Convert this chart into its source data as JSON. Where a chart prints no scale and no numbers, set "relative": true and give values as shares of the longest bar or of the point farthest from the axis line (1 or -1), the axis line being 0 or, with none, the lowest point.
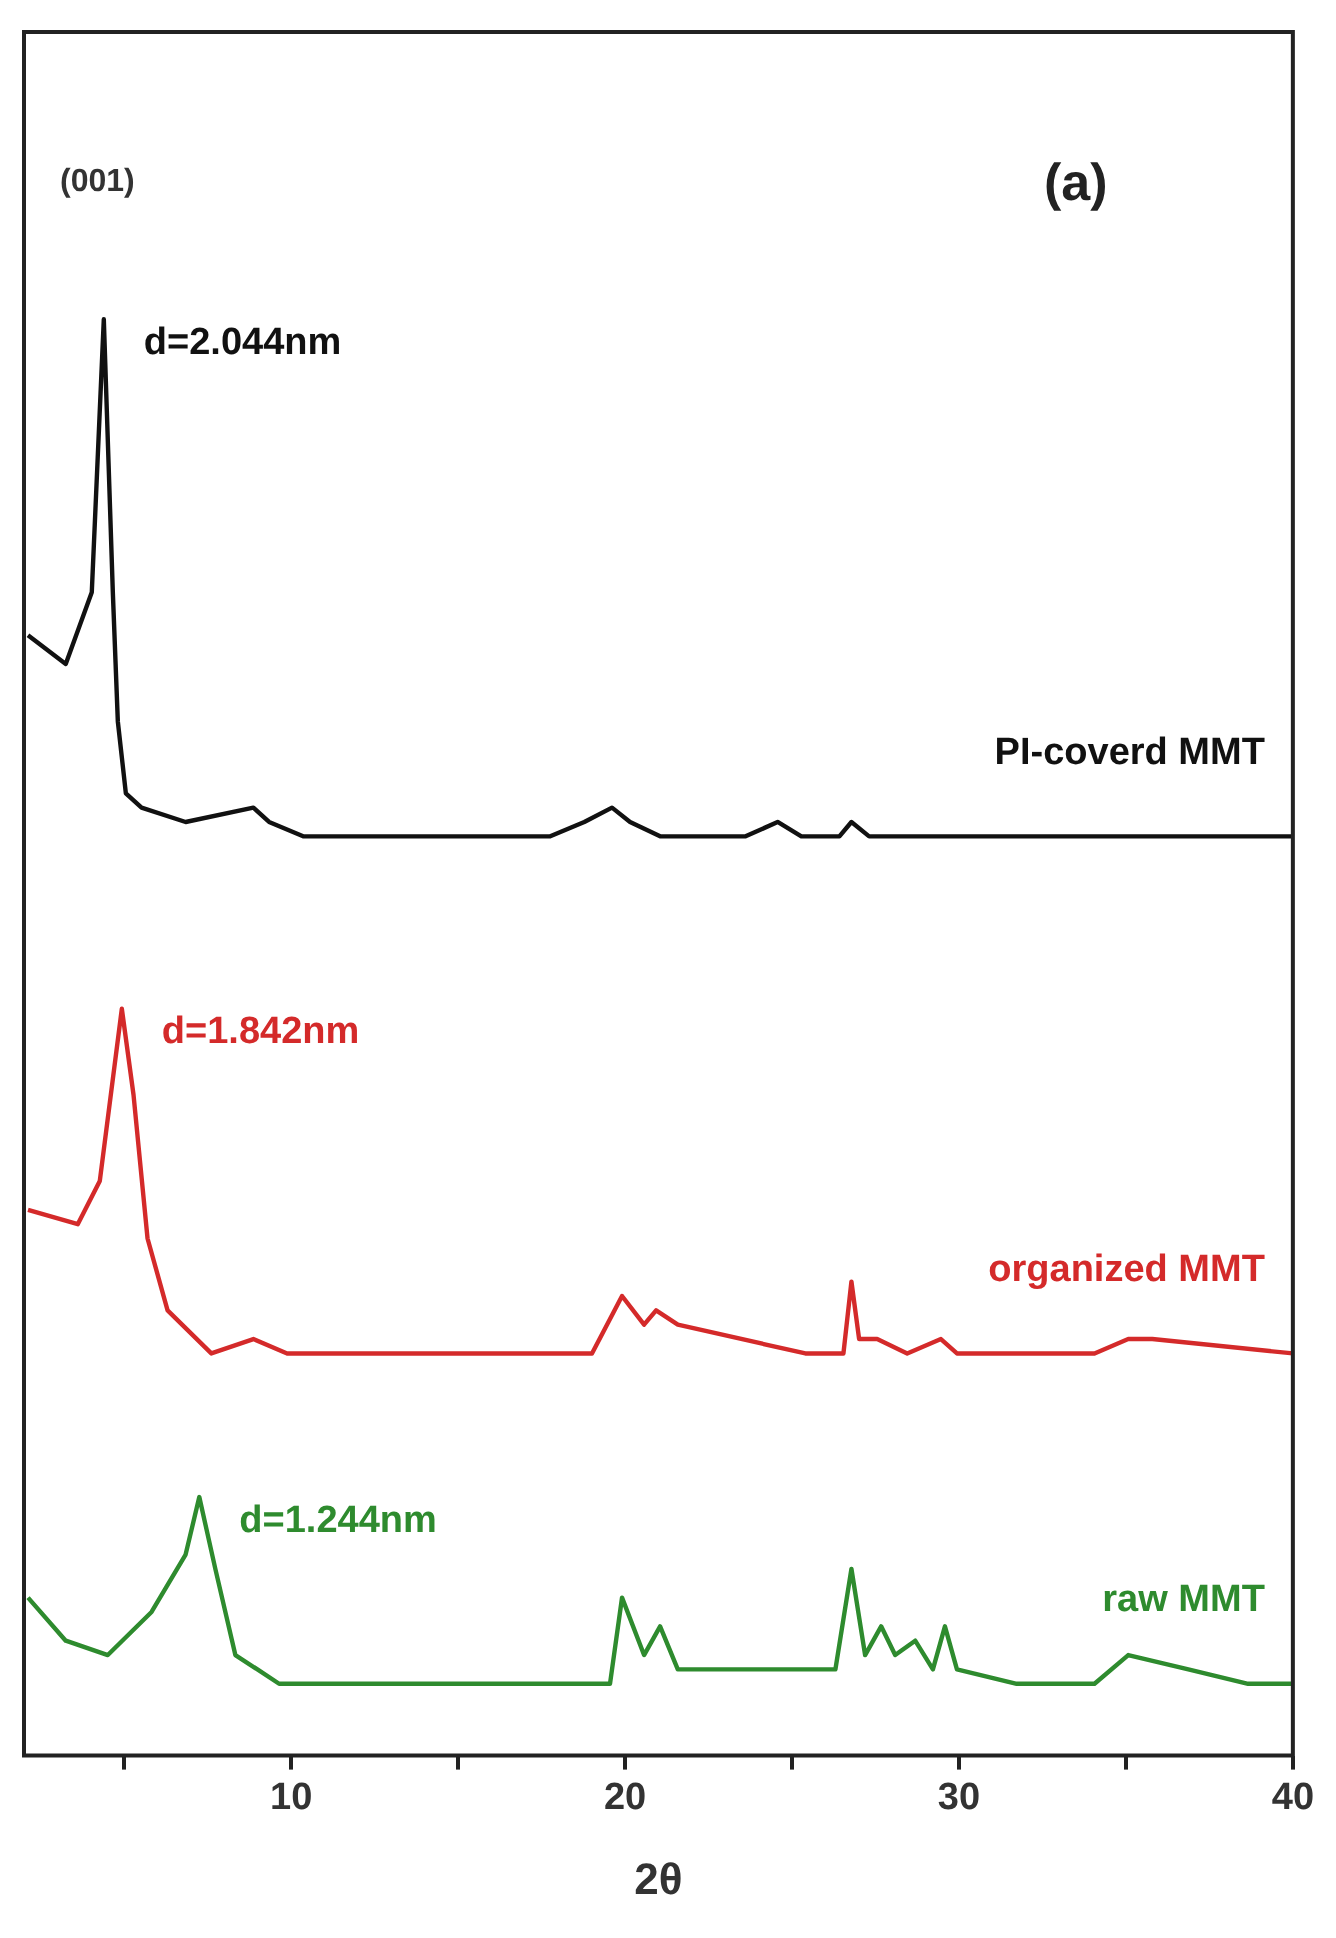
{
  "chart_data": {
    "type": "line",
    "xlabel": "2θ",
    "relative": true,
    "xlim": [
      2,
      40
    ],
    "xticks": [
      {
        "value": 5,
        "label": null
      },
      10,
      {
        "value": 15,
        "label": null
      },
      20,
      {
        "value": 25,
        "label": null
      },
      30,
      {
        "value": 35,
        "label": null
      },
      40
    ],
    "grid": false,
    "legend": false,
    "marker": "none",
    "line_style": "solid",
    "series": [
      {
        "name": "PI-coverd MMT",
        "color": "#111111",
        "x": [
          2.12,
          3.25,
          4.03,
          4.39,
          4.66,
          4.81,
          5.05,
          5.52,
          6.84,
          8.87,
          9.34,
          10.36,
          12.39,
          13.94,
          17.76,
          18.78,
          19.61,
          20.15,
          21.05,
          23.61,
          24.57,
          25.28,
          26.42,
          26.78,
          27.31,
          29.46,
          31.73,
          34.3,
          36.87,
          40
        ],
        "values": [
          0.78,
          0.76,
          0.81,
          1,
          0.81,
          0.72,
          0.67,
          0.66,
          0.65,
          0.66,
          0.65,
          0.64,
          0.64,
          0.64,
          0.64,
          0.65,
          0.66,
          0.65,
          0.64,
          0.64,
          0.65,
          0.64,
          0.64,
          0.65,
          0.64,
          0.64,
          0.64,
          0.64,
          0.64,
          0.64
        ]
      },
      {
        "name": "organized MMT",
        "color": "#d42a2a",
        "x": [
          2.12,
          3.61,
          4.27,
          4.93,
          5.28,
          5.7,
          6.3,
          7.61,
          8.87,
          9.88,
          13.94,
          19.01,
          19.91,
          20.57,
          20.93,
          21.58,
          25.4,
          26.54,
          26.78,
          27.01,
          27.55,
          28.45,
          29.46,
          29.94,
          34.06,
          35.07,
          35.79,
          40
        ],
        "values": [
          0.38,
          0.37,
          0.4,
          0.52,
          0.46,
          0.36,
          0.31,
          0.28,
          0.29,
          0.28,
          0.28,
          0.28,
          0.32,
          0.3,
          0.31,
          0.3,
          0.28,
          0.28,
          0.33,
          0.29,
          0.29,
          0.28,
          0.29,
          0.28,
          0.28,
          0.29,
          0.29,
          0.28
        ]
      },
      {
        "name": "raw MMT",
        "color": "#2e8b2e",
        "x": [
          2.12,
          3.25,
          4.51,
          5.82,
          6.84,
          7.25,
          7.73,
          8.33,
          8.99,
          9.64,
          12.69,
          17.76,
          19.55,
          19.91,
          20.57,
          21.05,
          21.58,
          25.64,
          26.3,
          26.78,
          27.19,
          27.67,
          28.09,
          28.69,
          29.22,
          29.58,
          29.94,
          31.73,
          34.06,
          35.07,
          36.87,
          38.66,
          40
        ],
        "values": [
          0.11,
          0.08,
          0.07,
          0.1,
          0.14,
          0.18,
          0.13,
          0.07,
          0.06,
          0.05,
          0.05,
          0.05,
          0.05,
          0.11,
          0.07,
          0.09,
          0.06,
          0.06,
          0.06,
          0.13,
          0.07,
          0.09,
          0.07,
          0.08,
          0.06,
          0.09,
          0.06,
          0.05,
          0.05,
          0.07,
          0.06,
          0.05,
          0.05
        ]
      }
    ],
    "annotations": [
      "(001)",
      "(a)",
      {
        "text": "d=2.044nm",
        "x": 4.39,
        "y": 1
      },
      {
        "text": "d=1.842nm",
        "x": 4.93,
        "y": 0.52
      },
      {
        "text": "d=1.244nm",
        "x": 7.25,
        "y": 0.18
      }
    ]
  }
}
